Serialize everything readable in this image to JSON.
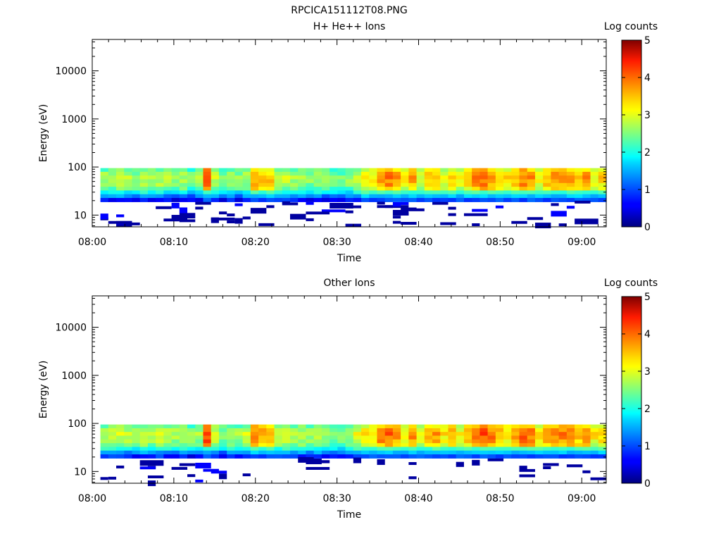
{
  "figure": {
    "title": "RPCICA151112T08.PNG"
  },
  "chart_data": [
    {
      "type": "heatmap",
      "title": "H+ He++ Ions",
      "xlabel": "Time",
      "ylabel": "Energy (eV)",
      "x_range": [
        "08:00",
        "09:03"
      ],
      "x_tick_labels": [
        "08:00",
        "08:10",
        "08:20",
        "08:30",
        "08:40",
        "08:50",
        "09:00"
      ],
      "y_scale": "log",
      "y_range": [
        5.7,
        45000
      ],
      "y_tick_labels": [
        "10",
        "100",
        "1000",
        "10000"
      ],
      "colorbar": {
        "label": "Log counts",
        "range": [
          0,
          5
        ],
        "tick_labels": [
          "0",
          "1",
          "2",
          "3",
          "4",
          "5"
        ],
        "colormap": "jet"
      },
      "data_extent": {
        "x_start": "08:01",
        "x_end": "09:03",
        "energy_min_eV": 6,
        "energy_max_eV": 95
      },
      "time_profile_log_counts": [
        2.6,
        2.6,
        2.7,
        2.6,
        2.5,
        2.7,
        2.6,
        2.7,
        2.6,
        2.5,
        2.6,
        2.4,
        2.5,
        3.9,
        2.7,
        2.4,
        2.6,
        2.5,
        2.6,
        3.5,
        3.4,
        3.3,
        2.7,
        2.7,
        2.6,
        2.6,
        2.5,
        2.6,
        2.5,
        2.4,
        2.3,
        2.5,
        2.8,
        3.0,
        3.1,
        3.6,
        3.7,
        3.5,
        3.0,
        3.5,
        2.8,
        3.3,
        3.4,
        3.0,
        3.3,
        2.9,
        3.3,
        3.7,
        3.8,
        3.6,
        3.3,
        3.1,
        3.4,
        3.7,
        3.6,
        3.0,
        3.4,
        3.6,
        3.5,
        3.6,
        3.3,
        3.5,
        3.0,
        3.2
      ],
      "profile_note": "peak log counts per time column near 40-70 eV"
    },
    {
      "type": "heatmap",
      "title": "Other Ions",
      "xlabel": "Time",
      "ylabel": "Energy (eV)",
      "x_range": [
        "08:00",
        "09:03"
      ],
      "x_tick_labels": [
        "08:00",
        "08:10",
        "08:20",
        "08:30",
        "08:40",
        "08:50",
        "09:00"
      ],
      "y_scale": "log",
      "y_range": [
        5.7,
        45000
      ],
      "y_tick_labels": [
        "10",
        "100",
        "1000",
        "10000"
      ],
      "colorbar": {
        "label": "Log counts",
        "range": [
          0,
          5
        ],
        "tick_labels": [
          "0",
          "1",
          "2",
          "3",
          "4",
          "5"
        ],
        "colormap": "jet"
      },
      "data_extent": {
        "x_start": "08:01",
        "x_end": "09:03",
        "energy_min_eV": 6,
        "energy_max_eV": 95
      },
      "time_profile_log_counts": [
        2.7,
        2.8,
        2.8,
        2.7,
        2.6,
        2.8,
        2.7,
        2.8,
        2.7,
        2.6,
        2.7,
        2.5,
        2.6,
        4.0,
        2.8,
        2.5,
        2.7,
        2.6,
        2.8,
        3.6,
        3.5,
        3.4,
        2.8,
        2.8,
        2.7,
        2.7,
        2.6,
        2.7,
        2.6,
        2.5,
        2.4,
        2.6,
        2.9,
        3.1,
        3.2,
        3.7,
        3.8,
        3.6,
        3.1,
        3.6,
        2.9,
        3.4,
        3.5,
        3.1,
        3.4,
        3.0,
        3.4,
        3.8,
        3.9,
        3.7,
        3.4,
        3.2,
        3.5,
        3.8,
        3.7,
        3.1,
        3.5,
        3.7,
        3.6,
        3.7,
        3.4,
        3.6,
        3.1,
        3.3
      ]
    }
  ]
}
